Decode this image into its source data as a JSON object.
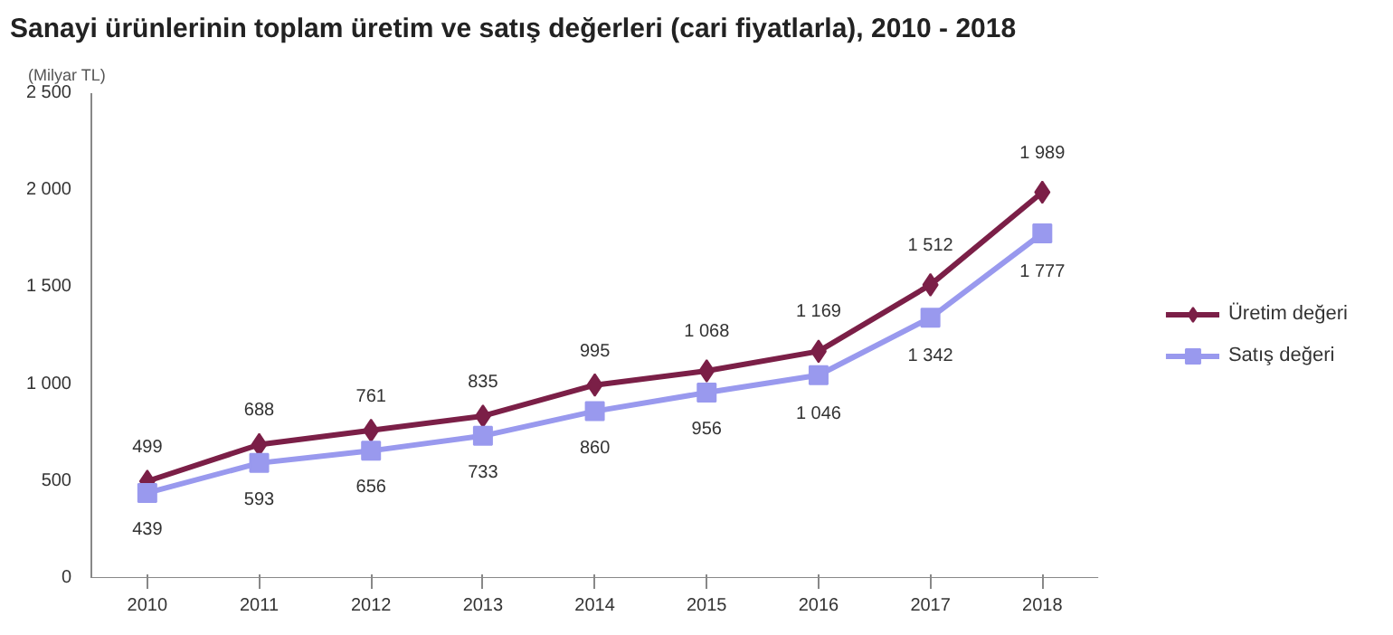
{
  "chart_data": {
    "type": "line",
    "title": "Sanayi ürünlerinin toplam üretim ve satış değerleri (cari fiyatlarla), 2010 - 2018",
    "ylabel": "(Milyar TL)",
    "categories": [
      "2010",
      "2011",
      "2012",
      "2013",
      "2014",
      "2015",
      "2016",
      "2017",
      "2018"
    ],
    "series": [
      {
        "name": "Üretim değeri",
        "color": "#7b1f47",
        "marker": "diamond",
        "values": [
          499,
          688,
          761,
          835,
          995,
          1068,
          1169,
          1512,
          1989
        ],
        "value_labels": [
          "499",
          "688",
          "761",
          "835",
          "995",
          "1 068",
          "1 169",
          "1 512",
          "1 989"
        ]
      },
      {
        "name": "Satış değeri",
        "color": "#9999ee",
        "marker": "square",
        "values": [
          439,
          593,
          656,
          733,
          860,
          956,
          1046,
          1342,
          1777
        ],
        "value_labels": [
          "439",
          "593",
          "656",
          "733",
          "860",
          "956",
          "1 046",
          "1 342",
          "1 777"
        ]
      }
    ],
    "ylim": [
      0,
      2500
    ],
    "yticks": [
      0,
      500,
      {
        "value": 1000,
        "label": "1 000"
      },
      {
        "value": 1500,
        "label": "1 500"
      },
      {
        "value": 2000,
        "label": "2 000"
      },
      {
        "value": 2500,
        "label": "2 500"
      }
    ],
    "grid": false,
    "legend": "right",
    "line_style": "solid"
  }
}
